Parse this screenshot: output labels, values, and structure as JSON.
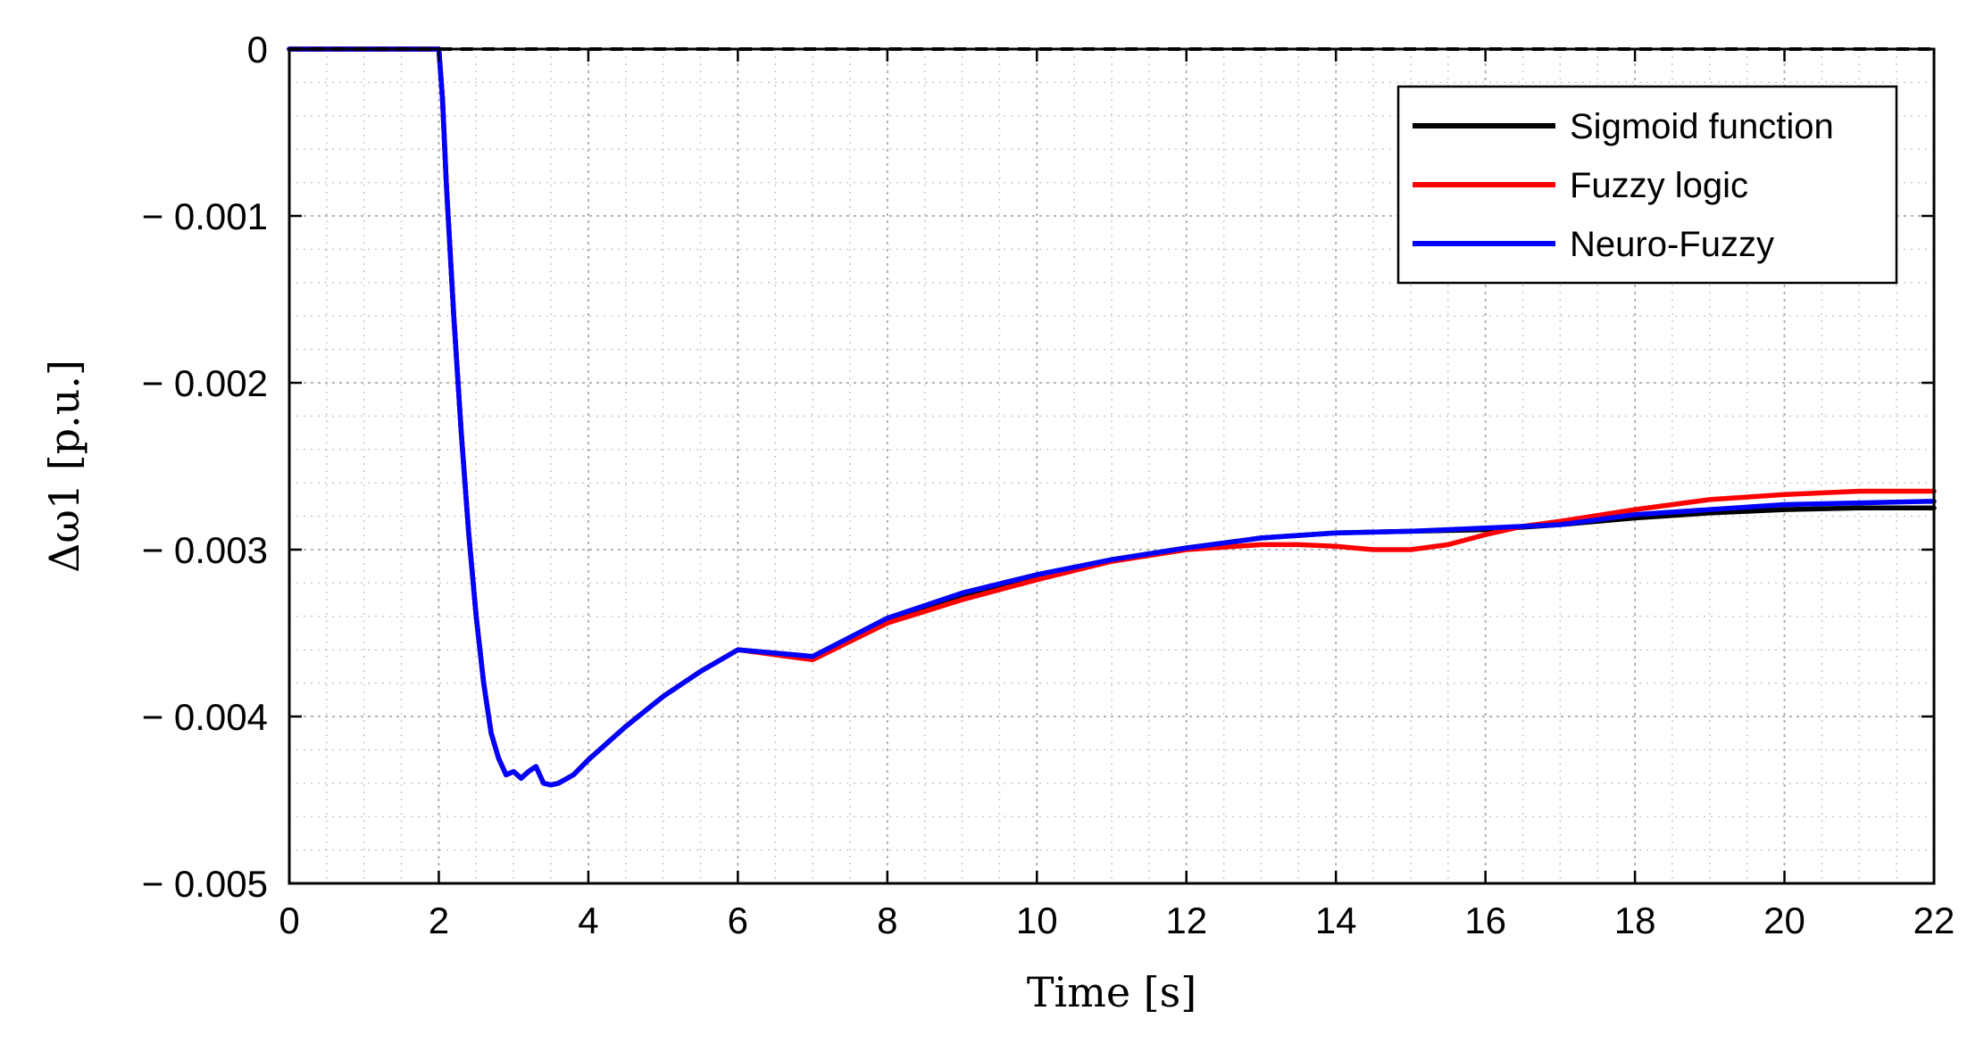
{
  "chart_data": {
    "type": "line",
    "title": "",
    "xlabel": "Time [s]",
    "ylabel": "Δω1 [p.u.]",
    "xlim": [
      0,
      22
    ],
    "ylim": [
      -0.005,
      0
    ],
    "xticks": [
      0,
      2,
      4,
      6,
      8,
      10,
      12,
      14,
      16,
      18,
      20,
      22
    ],
    "xtick_labels": [
      "0",
      "2",
      "4",
      "6",
      "8",
      "10",
      "12",
      "14",
      "16",
      "18",
      "20",
      "22"
    ],
    "yticks": [
      0,
      -0.001,
      -0.002,
      -0.003,
      -0.004,
      -0.005
    ],
    "ytick_labels": [
      "0",
      "− 0.001",
      "− 0.002",
      "− 0.003",
      "− 0.004",
      "− 0.005"
    ],
    "grid": true,
    "minor_grid": true,
    "legend_position": "top-right",
    "series": [
      {
        "name": "Sigmoid function",
        "color": "#000000",
        "x": [
          0,
          2.0,
          2.05,
          2.1,
          2.2,
          2.3,
          2.4,
          2.5,
          2.6,
          2.7,
          2.8,
          2.9,
          3.0,
          3.1,
          3.2,
          3.3,
          3.4,
          3.5,
          3.6,
          3.8,
          4.0,
          4.5,
          5.0,
          5.5,
          6.0,
          7.0,
          8.0,
          9.0,
          10.0,
          11.0,
          12.0,
          13.0,
          14.0,
          15.0,
          16.0,
          17.0,
          18.0,
          19.0,
          20.0,
          21.0,
          22.0
        ],
        "y": [
          0,
          0,
          -0.0003,
          -0.0008,
          -0.0016,
          -0.0023,
          -0.0029,
          -0.0034,
          -0.0038,
          -0.0041,
          -0.00425,
          -0.00435,
          -0.00433,
          -0.00437,
          -0.00433,
          -0.0043,
          -0.0044,
          -0.00441,
          -0.0044,
          -0.00435,
          -0.00426,
          -0.00406,
          -0.00388,
          -0.00373,
          -0.0036,
          -0.00364,
          -0.00342,
          -0.00327,
          -0.00316,
          -0.00306,
          -0.00299,
          -0.00293,
          -0.0029,
          -0.00289,
          -0.00288,
          -0.00285,
          -0.00281,
          -0.00278,
          -0.00276,
          -0.00275,
          -0.00275
        ]
      },
      {
        "name": "Fuzzy logic",
        "color": "#ff0000",
        "x": [
          0,
          2.0,
          2.05,
          2.1,
          2.2,
          2.3,
          2.4,
          2.5,
          2.6,
          2.7,
          2.8,
          2.9,
          3.0,
          3.1,
          3.2,
          3.3,
          3.4,
          3.5,
          3.6,
          3.8,
          4.0,
          4.5,
          5.0,
          5.5,
          6.0,
          7.0,
          8.0,
          9.0,
          10.0,
          11.0,
          12.0,
          13.0,
          13.5,
          14.0,
          14.5,
          15.0,
          15.5,
          16.0,
          16.5,
          17.0,
          18.0,
          19.0,
          20.0,
          21.0,
          22.0
        ],
        "y": [
          0,
          0,
          -0.0003,
          -0.0008,
          -0.0016,
          -0.0023,
          -0.0029,
          -0.0034,
          -0.0038,
          -0.0041,
          -0.00425,
          -0.00435,
          -0.00433,
          -0.00437,
          -0.00433,
          -0.0043,
          -0.0044,
          -0.00441,
          -0.0044,
          -0.00435,
          -0.00426,
          -0.00406,
          -0.00388,
          -0.00373,
          -0.0036,
          -0.00366,
          -0.00344,
          -0.0033,
          -0.00318,
          -0.00307,
          -0.003,
          -0.00297,
          -0.00297,
          -0.00298,
          -0.003,
          -0.003,
          -0.00297,
          -0.00291,
          -0.00286,
          -0.00283,
          -0.00276,
          -0.0027,
          -0.00267,
          -0.00265,
          -0.00265
        ]
      },
      {
        "name": "Neuro-Fuzzy",
        "color": "#0000ff",
        "x": [
          0,
          2.0,
          2.05,
          2.1,
          2.2,
          2.3,
          2.4,
          2.5,
          2.6,
          2.7,
          2.8,
          2.9,
          3.0,
          3.1,
          3.2,
          3.3,
          3.4,
          3.5,
          3.6,
          3.8,
          4.0,
          4.5,
          5.0,
          5.5,
          6.0,
          7.0,
          8.0,
          9.0,
          10.0,
          11.0,
          12.0,
          13.0,
          14.0,
          15.0,
          16.0,
          17.0,
          18.0,
          19.0,
          20.0,
          21.0,
          22.0
        ],
        "y": [
          0,
          0,
          -0.0003,
          -0.0008,
          -0.0016,
          -0.0023,
          -0.0029,
          -0.0034,
          -0.0038,
          -0.0041,
          -0.00425,
          -0.00435,
          -0.00433,
          -0.00437,
          -0.00433,
          -0.0043,
          -0.0044,
          -0.00441,
          -0.0044,
          -0.00435,
          -0.00426,
          -0.00406,
          -0.00388,
          -0.00373,
          -0.0036,
          -0.00364,
          -0.00341,
          -0.00326,
          -0.00315,
          -0.00306,
          -0.00299,
          -0.00293,
          -0.0029,
          -0.00289,
          -0.00287,
          -0.00285,
          -0.00279,
          -0.00276,
          -0.00273,
          -0.00272,
          -0.00271
        ]
      }
    ]
  }
}
